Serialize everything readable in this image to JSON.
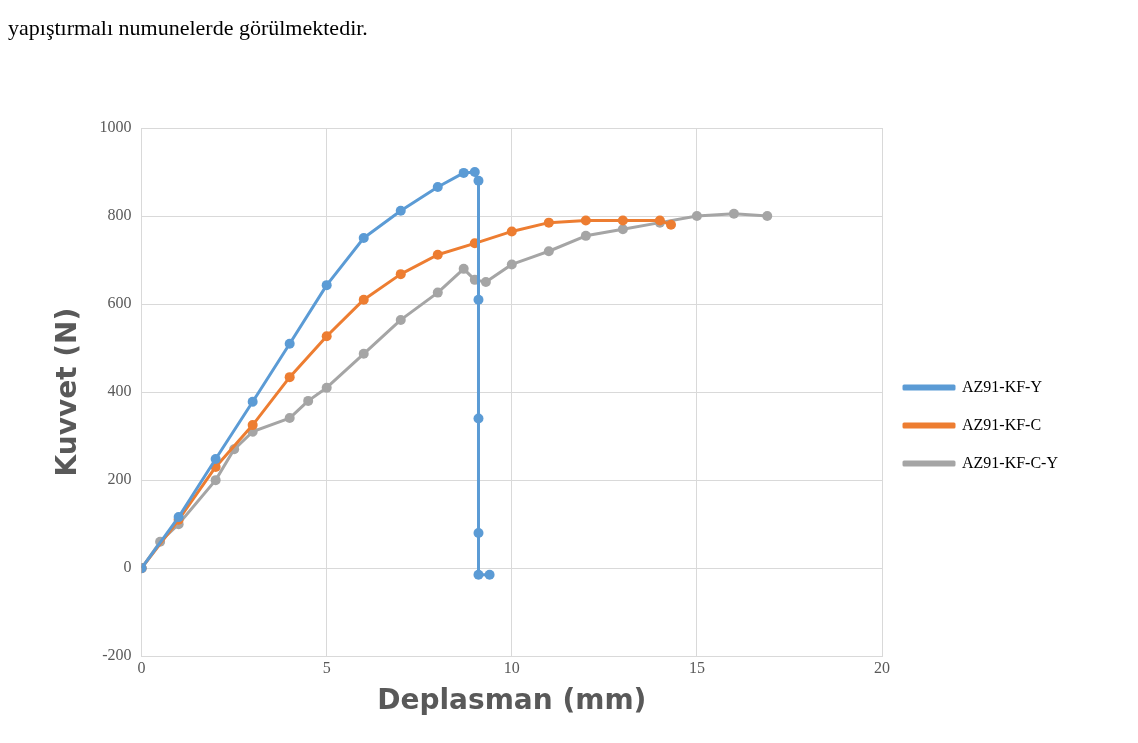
{
  "chart_data": {
    "type": "line",
    "xlabel": "Deplasman (mm)",
    "ylabel": "Kuvvet (N)",
    "annotations": [
      "yapıştırmalı numunelerde görülmektedir."
    ],
    "xlim": [
      0,
      20
    ],
    "xticks": [
      0,
      5,
      10,
      15,
      20
    ],
    "ylim": [
      -200,
      1000
    ],
    "yticks": [
      -200,
      0,
      200,
      400,
      600,
      800,
      1000
    ],
    "grid": true,
    "legend": "right",
    "marker": "circle",
    "line_style": "solid",
    "series": [
      {
        "name": "AZ91-KF-Y",
        "color": "#5b9bd5",
        "x": [
          0,
          1,
          2,
          3,
          4,
          5,
          6,
          7,
          8,
          8.7,
          9,
          9.1,
          9.1,
          9.1,
          9.1,
          9.1,
          9.4
        ],
        "values": [
          0,
          116,
          248,
          378,
          510,
          643,
          750,
          812,
          866,
          898,
          900,
          880,
          610,
          340,
          80,
          -15,
          -15
        ]
      },
      {
        "name": "AZ91-KF-C",
        "color": "#ed7d31",
        "x": [
          0,
          1,
          2,
          3,
          4,
          5,
          6,
          7,
          8,
          9,
          10,
          11,
          12,
          13,
          14,
          14.3
        ],
        "values": [
          0,
          110,
          230,
          325,
          434,
          527,
          610,
          668,
          712,
          738,
          765,
          785,
          790,
          790,
          790,
          780
        ]
      },
      {
        "name": "AZ91-KF-C-Y",
        "color": "#a5a5a5",
        "x": [
          0,
          0.5,
          1,
          2,
          2.5,
          3,
          4,
          4.5,
          5,
          6,
          7,
          8,
          8.7,
          9,
          9.3,
          10,
          11,
          12,
          13,
          14,
          15,
          16,
          16.9
        ],
        "values": [
          0,
          60,
          100,
          200,
          270,
          310,
          341,
          380,
          410,
          487,
          564,
          626,
          680,
          655,
          650,
          690,
          720,
          755,
          770,
          785,
          800,
          805,
          800
        ]
      }
    ]
  }
}
